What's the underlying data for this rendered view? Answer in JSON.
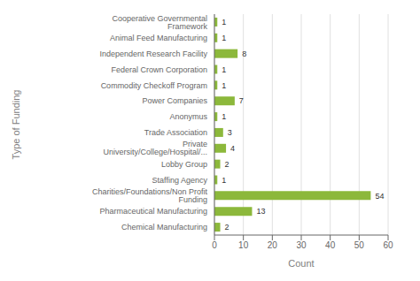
{
  "chart_data": {
    "type": "bar",
    "orientation": "horizontal",
    "categories": [
      "Chemical Manufacturing",
      "Pharmaceutical Manufacturing",
      "Charities/Foundations/Non Profit Funding",
      "Staffing Agency",
      "Lobby Group",
      "Private University/College/Hospital/...",
      "Trade Association",
      "Anonymus",
      "Power Companies",
      "Commodity Checkoff Program",
      "Federal Crown Corporation",
      "Independent Research Facility",
      "Animal Feed Manufacturing",
      "Cooperative Governmental Framework"
    ],
    "values": [
      2,
      13,
      54,
      1,
      2,
      4,
      3,
      1,
      7,
      1,
      1,
      8,
      1,
      1
    ],
    "color": "#8cb83b",
    "xlabel": "Count",
    "ylabel": "Type of Funding",
    "xlim": [
      0,
      60
    ],
    "xticks": [
      0,
      10,
      20,
      30,
      40,
      50,
      60
    ],
    "grid": true,
    "data_labels": true
  }
}
